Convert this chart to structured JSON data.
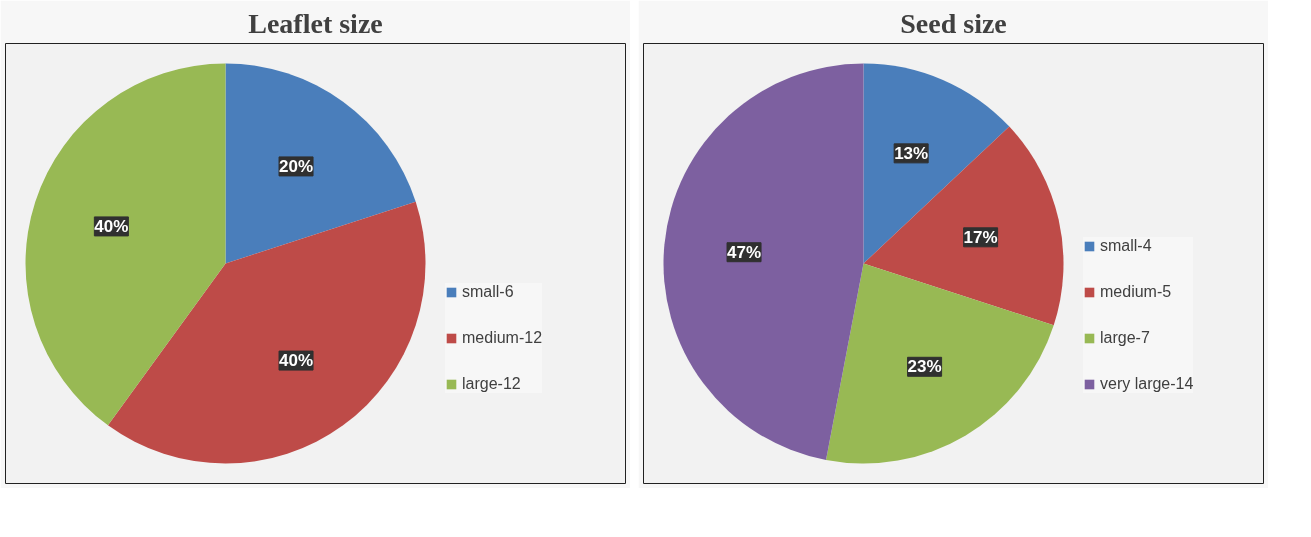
{
  "chart_data": [
    {
      "type": "pie",
      "title": "Leaflet size",
      "categories": [
        "small-6",
        "medium-12",
        "large-12"
      ],
      "values": [
        20,
        40,
        40
      ],
      "colors": [
        "#4a7ebb",
        "#be4b48",
        "#98b954"
      ],
      "value_labels": [
        "20%",
        "40%",
        "40%"
      ],
      "legend": "right"
    },
    {
      "type": "pie",
      "title": "Seed size",
      "categories": [
        "small-4",
        "medium-5",
        "large-7",
        "very large-14"
      ],
      "values": [
        13,
        17,
        23,
        47
      ],
      "colors": [
        "#4a7ebb",
        "#be4b48",
        "#98b954",
        "#7d60a0"
      ],
      "value_labels": [
        "13%",
        "17%",
        "23%",
        "47%"
      ],
      "legend": "right"
    }
  ]
}
